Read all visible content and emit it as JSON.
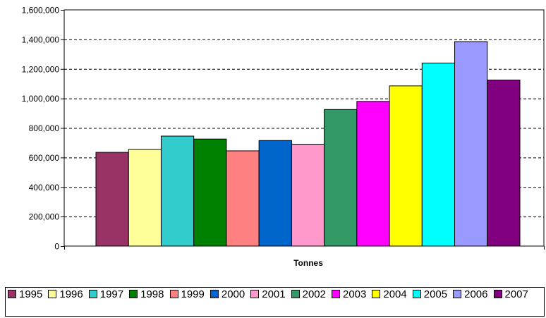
{
  "chart_data": {
    "type": "bar",
    "xlabel": "Tonnes",
    "ylabel": "",
    "ylim": [
      0,
      1600000
    ],
    "yticks": [
      0,
      200000,
      400000,
      600000,
      800000,
      1000000,
      1200000,
      1400000,
      1600000
    ],
    "ytick_labels": [
      "0",
      "200,000",
      "400,000",
      "600,000",
      "800,000",
      "1,000,000",
      "1,200,000",
      "1,400,000",
      "1,600,000"
    ],
    "grid": true,
    "legend_position": "bottom",
    "series": [
      {
        "name": "1995",
        "value": 635000,
        "color": "#993366"
      },
      {
        "name": "1996",
        "value": 655000,
        "color": "#FFFF99"
      },
      {
        "name": "1997",
        "value": 745000,
        "color": "#33CCCC"
      },
      {
        "name": "1998",
        "value": 725000,
        "color": "#008000"
      },
      {
        "name": "1999",
        "value": 645000,
        "color": "#FF8080"
      },
      {
        "name": "2000",
        "value": 715000,
        "color": "#0066CC"
      },
      {
        "name": "2001",
        "value": 690000,
        "color": "#FF99CC"
      },
      {
        "name": "2002",
        "value": 925000,
        "color": "#339966"
      },
      {
        "name": "2003",
        "value": 980000,
        "color": "#FF00FF"
      },
      {
        "name": "2004",
        "value": 1085000,
        "color": "#FFFF00"
      },
      {
        "name": "2005",
        "value": 1240000,
        "color": "#00FFFF"
      },
      {
        "name": "2006",
        "value": 1385000,
        "color": "#9999FF"
      },
      {
        "name": "2007",
        "value": 1125000,
        "color": "#800080"
      }
    ]
  }
}
